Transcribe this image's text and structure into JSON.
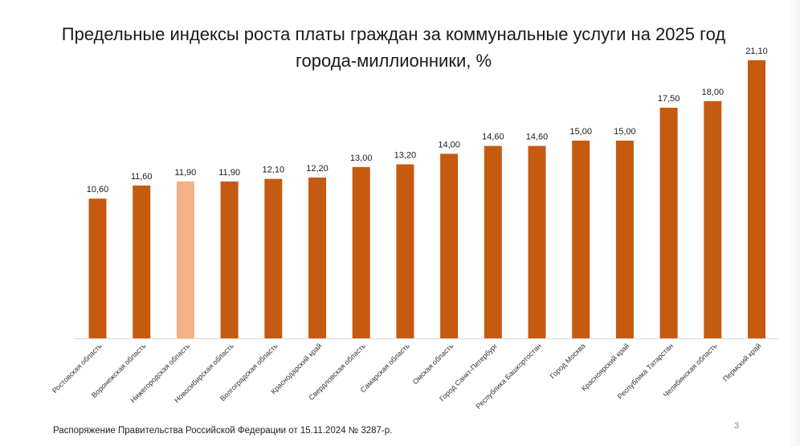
{
  "slide": {
    "title_line1": "Предельные индексы роста платы граждан за коммунальные услуги на 2025 год",
    "title_line2": "города-миллионники, %",
    "source_note": "Распоряжение Правительства Российской Федерации от 15.11.2024 № 3287-р.",
    "page_number": "3"
  },
  "chart_data": {
    "type": "bar",
    "title": "Предельные индексы роста платы граждан за коммунальные услуги на 2025 год города-миллионники, %",
    "xlabel": "",
    "ylabel": "",
    "ylim": [
      0,
      22
    ],
    "grid": false,
    "categories": [
      "Ростовская область",
      "Воронежская область",
      "Нижегородская область",
      "Новосибирская область",
      "Волгоградская  область",
      "Краснодарский  край",
      "Свердловская область",
      "Самарская область",
      "Омская  область",
      "Город Санкт-Петербург",
      "Республика Башкортостан",
      "Город Москва",
      "Красноярский край",
      "Республика Татарстан",
      "Челябинская область",
      "Пермский край"
    ],
    "values": [
      10.6,
      11.6,
      11.9,
      11.9,
      12.1,
      12.2,
      13.0,
      13.2,
      14.0,
      14.6,
      14.6,
      15.0,
      15.0,
      17.5,
      18.0,
      21.1
    ],
    "value_labels": [
      "10,60",
      "11,60",
      "11,90",
      "11,90",
      "12,10",
      "12,20",
      "13,00",
      "13,20",
      "14,00",
      "14,60",
      "14,60",
      "15,00",
      "15,00",
      "17,50",
      "18,00",
      "21,10"
    ],
    "highlight_index": 2,
    "colors": {
      "bar": "#c55a11",
      "highlight": "#f4b183",
      "axis": "#d9d9d9",
      "text": "#1a1a1a"
    }
  }
}
